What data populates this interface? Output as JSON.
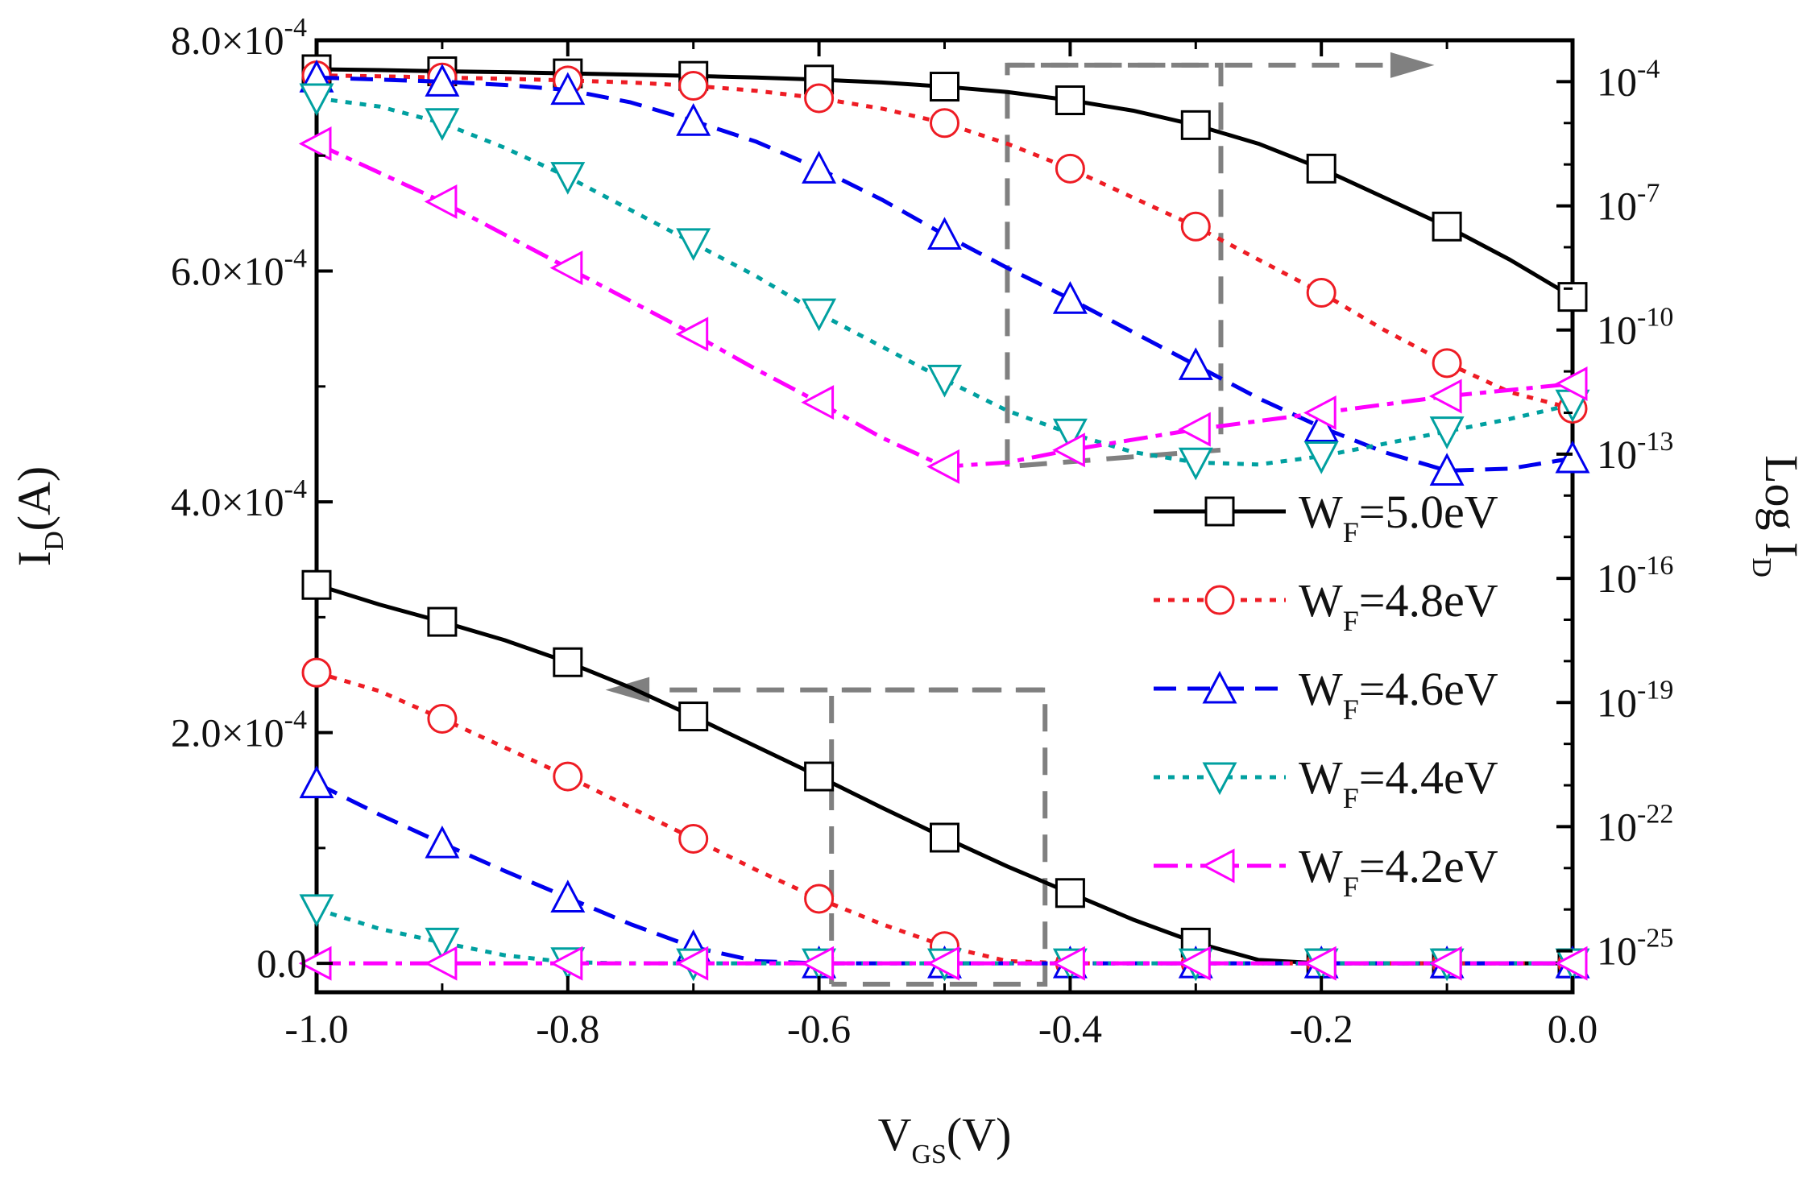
{
  "chart_data": {
    "type": "line",
    "title": "",
    "xlabel": {
      "main": "V",
      "sub": "GS",
      "unit": "(V)"
    },
    "ylabel": {
      "main": "I",
      "sub": "D",
      "unit": "(A)"
    },
    "ylabel_right": {
      "main": "Log I",
      "sub": "D"
    },
    "xlim": [
      -1.0,
      0.0
    ],
    "ylim": [
      -2.5e-05,
      0.0008
    ],
    "ylim_right_log10": [
      -26,
      -3
    ],
    "xticks": [
      "-1.0",
      "-0.8",
      "-0.6",
      "-0.4",
      "-0.2",
      "0.0"
    ],
    "yticks_left": [
      {
        "mantissa": "0.0",
        "exp": ""
      },
      {
        "mantissa": "2.0×10",
        "exp": "-4"
      },
      {
        "mantissa": "4.0×10",
        "exp": "-4"
      },
      {
        "mantissa": "6.0×10",
        "exp": "-4"
      },
      {
        "mantissa": "8.0×10",
        "exp": "-4"
      }
    ],
    "yticks_right": [
      {
        "base": "10",
        "exp": "-4"
      },
      {
        "base": "10",
        "exp": "-7"
      },
      {
        "base": "10",
        "exp": "-10"
      },
      {
        "base": "10",
        "exp": "-13"
      },
      {
        "base": "10",
        "exp": "-16"
      },
      {
        "base": "10",
        "exp": "-19"
      },
      {
        "base": "10",
        "exp": "-22"
      },
      {
        "base": "10",
        "exp": "-25"
      }
    ],
    "legend_placement": "right",
    "series": [
      {
        "name": "WF=5.0eV",
        "label_main": "W",
        "label_sub": "F",
        "label_value": "=5.0eV",
        "color": "#000000",
        "dash": "solid",
        "marker": "square",
        "x": [
          -1.0,
          -0.95,
          -0.9,
          -0.85,
          -0.8,
          -0.75,
          -0.7,
          -0.65,
          -0.6,
          -0.55,
          -0.5,
          -0.45,
          -0.4,
          -0.35,
          -0.3,
          -0.25,
          -0.2,
          -0.15,
          -0.1,
          -0.05,
          0.0
        ],
        "linear": [
          0.000328,
          0.000311,
          0.000296,
          0.00028,
          0.000261,
          0.000239,
          0.000214,
          0.000188,
          0.000162,
          0.000135,
          0.000109,
          8.4e-05,
          6.1e-05,
          3.8e-05,
          1.8e-05,
          3e-06,
          0.0,
          0.0,
          0.0,
          0.0,
          0.0
        ],
        "log10": [
          -3.7,
          -3.72,
          -3.75,
          -3.77,
          -3.8,
          -3.83,
          -3.86,
          -3.9,
          -3.95,
          -4.02,
          -4.12,
          -4.25,
          -4.45,
          -4.7,
          -5.05,
          -5.5,
          -6.1,
          -6.8,
          -7.5,
          -8.3,
          -9.2
        ]
      },
      {
        "name": "WF=4.8eV",
        "label_main": "W",
        "label_sub": "F",
        "label_value": "=4.8eV",
        "color": "#ee1c24",
        "dash": "dot",
        "marker": "circle",
        "x": [
          -1.0,
          -0.95,
          -0.9,
          -0.85,
          -0.8,
          -0.75,
          -0.7,
          -0.65,
          -0.6,
          -0.55,
          -0.5,
          -0.45,
          -0.4,
          -0.35,
          -0.3,
          -0.25,
          -0.2,
          -0.15,
          -0.1,
          -0.05,
          0.0
        ],
        "linear": [
          0.000252,
          0.000236,
          0.000212,
          0.000187,
          0.000162,
          0.000135,
          0.000108,
          8.1e-05,
          5.6e-05,
          3.4e-05,
          1.5e-05,
          2e-06,
          0.0,
          0.0,
          0.0,
          0.0,
          0.0,
          0.0,
          0.0,
          0.0,
          0.0
        ],
        "log10": [
          -3.85,
          -3.87,
          -3.9,
          -3.93,
          -3.97,
          -4.02,
          -4.1,
          -4.22,
          -4.4,
          -4.65,
          -5.0,
          -5.5,
          -6.1,
          -6.8,
          -7.5,
          -8.3,
          -9.1,
          -10.0,
          -10.8,
          -11.5,
          -11.9
        ]
      },
      {
        "name": "WF=4.6eV",
        "label_main": "W",
        "label_sub": "F",
        "label_value": "=4.6eV",
        "color": "#0000ee",
        "dash": "dash",
        "marker": "triangle-up",
        "x": [
          -1.0,
          -0.95,
          -0.9,
          -0.85,
          -0.8,
          -0.75,
          -0.7,
          -0.65,
          -0.6,
          -0.55,
          -0.5,
          -0.45,
          -0.4,
          -0.35,
          -0.3,
          -0.25,
          -0.2,
          -0.15,
          -0.1,
          -0.05,
          0.0
        ],
        "linear": [
          0.000156,
          0.000129,
          0.000104,
          8e-05,
          5.7e-05,
          3.4e-05,
          1.4e-05,
          2e-06,
          0.0,
          0.0,
          0.0,
          0.0,
          0.0,
          0.0,
          0.0,
          0.0,
          0.0,
          0.0,
          0.0,
          0.0,
          0.0
        ],
        "log10": [
          -3.9,
          -3.95,
          -4.0,
          -4.08,
          -4.2,
          -4.5,
          -4.95,
          -5.45,
          -6.1,
          -6.85,
          -7.7,
          -8.5,
          -9.25,
          -10.05,
          -10.85,
          -11.65,
          -12.35,
          -12.95,
          -13.4,
          -13.35,
          -13.1
        ]
      },
      {
        "name": "WF=4.4eV",
        "label_main": "W",
        "label_sub": "F",
        "label_value": "=4.4eV",
        "color": "#00a0a0",
        "dash": "dot",
        "marker": "triangle-down",
        "x": [
          -1.0,
          -0.95,
          -0.9,
          -0.85,
          -0.8,
          -0.75,
          -0.7,
          -0.65,
          -0.6,
          -0.55,
          -0.5,
          -0.45,
          -0.4,
          -0.35,
          -0.3,
          -0.25,
          -0.2,
          -0.15,
          -0.1,
          -0.05,
          0.0
        ],
        "linear": [
          4.7e-05,
          3e-05,
          1.8e-05,
          7e-06,
          1e-06,
          0.0,
          0.0,
          0.0,
          0.0,
          0.0,
          0.0,
          0.0,
          0.0,
          0.0,
          0.0,
          0.0,
          0.0,
          0.0,
          0.0,
          0.0,
          0.0
        ],
        "log10": [
          -4.4,
          -4.6,
          -5.0,
          -5.6,
          -6.3,
          -7.1,
          -7.9,
          -8.7,
          -9.6,
          -10.4,
          -11.2,
          -11.95,
          -12.5,
          -12.95,
          -13.2,
          -13.25,
          -13.05,
          -12.75,
          -12.45,
          -12.15,
          -11.8
        ]
      },
      {
        "name": "WF=4.2eV",
        "label_main": "W",
        "label_sub": "F",
        "label_value": "=4.2eV",
        "color": "#ff00ff",
        "dash": "dashdot",
        "marker": "triangle-left",
        "x": [
          -1.0,
          -0.95,
          -0.9,
          -0.85,
          -0.8,
          -0.75,
          -0.7,
          -0.65,
          -0.6,
          -0.55,
          -0.5,
          -0.45,
          -0.4,
          -0.35,
          -0.3,
          -0.25,
          -0.2,
          -0.15,
          -0.1,
          -0.05,
          0.0
        ],
        "linear": [
          0.0,
          0.0,
          0.0,
          0.0,
          0.0,
          0.0,
          0.0,
          0.0,
          0.0,
          0.0,
          0.0,
          0.0,
          0.0,
          0.0,
          0.0,
          0.0,
          0.0,
          0.0,
          0.0,
          0.0,
          0.0
        ],
        "log10": [
          -5.5,
          -6.2,
          -6.9,
          -7.7,
          -8.5,
          -9.3,
          -10.1,
          -10.95,
          -11.75,
          -12.6,
          -13.3,
          -13.2,
          -12.9,
          -12.65,
          -12.4,
          -12.2,
          -12.0,
          -11.8,
          -11.6,
          -11.45,
          -11.3
        ]
      }
    ],
    "annotations": [
      {
        "text": "dashed box with arrow pointing right: upper curves read on right log axis",
        "arrow": "right"
      },
      {
        "text": "dashed box with arrow pointing left: lower curves read on left linear axis",
        "arrow": "left"
      }
    ]
  }
}
